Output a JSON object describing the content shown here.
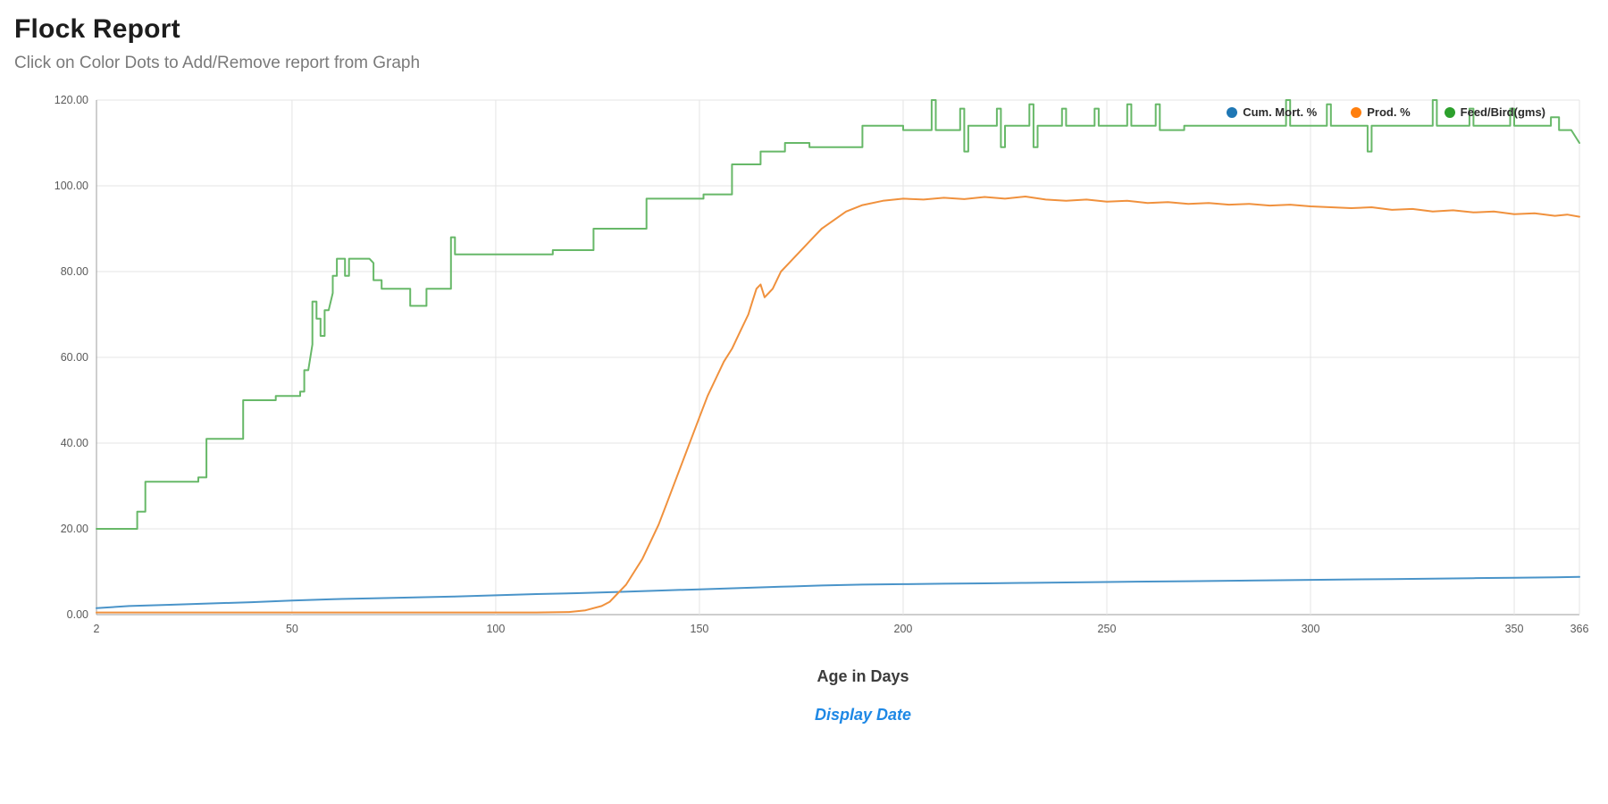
{
  "page": {
    "title": "Flock Report",
    "subtitle": "Click on Color Dots to Add/Remove report from Graph",
    "display_date_link": "Display Date"
  },
  "chart_data": {
    "type": "line",
    "title": "Flock Report",
    "xlabel": "Age in Days",
    "ylabel": "",
    "x_range": [
      2,
      366
    ],
    "y_range": [
      0,
      120
    ],
    "x_ticks": [
      2,
      50,
      100,
      150,
      200,
      250,
      300,
      350,
      366
    ],
    "y_ticks": [
      0,
      20,
      40,
      60,
      80,
      100,
      120
    ],
    "grid": true,
    "legend_position": "top-right",
    "colors": {
      "axis": "#9e9e9e",
      "gridline": "#e4e4e4",
      "tick_text": "#5a5a5a"
    },
    "series": [
      {
        "name": "Cum. Mort. %",
        "color": "#1f77b4",
        "line_color": "#4a94c9",
        "points": [
          [
            2,
            1.5
          ],
          [
            10,
            2
          ],
          [
            20,
            2.3
          ],
          [
            30,
            2.6
          ],
          [
            40,
            2.9
          ],
          [
            50,
            3.3
          ],
          [
            60,
            3.6
          ],
          [
            70,
            3.8
          ],
          [
            80,
            4.0
          ],
          [
            90,
            4.2
          ],
          [
            100,
            4.5
          ],
          [
            110,
            4.8
          ],
          [
            120,
            5.0
          ],
          [
            130,
            5.3
          ],
          [
            140,
            5.6
          ],
          [
            150,
            5.9
          ],
          [
            160,
            6.2
          ],
          [
            170,
            6.5
          ],
          [
            180,
            6.8
          ],
          [
            190,
            7.0
          ],
          [
            200,
            7.1
          ],
          [
            210,
            7.2
          ],
          [
            220,
            7.3
          ],
          [
            230,
            7.4
          ],
          [
            240,
            7.5
          ],
          [
            250,
            7.6
          ],
          [
            260,
            7.7
          ],
          [
            270,
            7.8
          ],
          [
            280,
            7.9
          ],
          [
            290,
            8.0
          ],
          [
            300,
            8.1
          ],
          [
            310,
            8.2
          ],
          [
            320,
            8.3
          ],
          [
            330,
            8.4
          ],
          [
            340,
            8.5
          ],
          [
            350,
            8.6
          ],
          [
            360,
            8.7
          ],
          [
            366,
            8.8
          ]
        ]
      },
      {
        "name": "Prod. %",
        "color": "#ff7f0e",
        "line_color": "#f0913d",
        "points": [
          [
            2,
            0.5
          ],
          [
            30,
            0.5
          ],
          [
            60,
            0.5
          ],
          [
            90,
            0.5
          ],
          [
            110,
            0.5
          ],
          [
            118,
            0.6
          ],
          [
            122,
            1
          ],
          [
            126,
            2
          ],
          [
            128,
            3
          ],
          [
            130,
            5
          ],
          [
            132,
            7
          ],
          [
            134,
            10
          ],
          [
            136,
            13
          ],
          [
            138,
            17
          ],
          [
            140,
            21
          ],
          [
            142,
            26
          ],
          [
            144,
            31
          ],
          [
            146,
            36
          ],
          [
            148,
            41
          ],
          [
            150,
            46
          ],
          [
            152,
            51
          ],
          [
            154,
            55
          ],
          [
            156,
            59
          ],
          [
            158,
            62
          ],
          [
            160,
            66
          ],
          [
            162,
            70
          ],
          [
            163,
            73
          ],
          [
            164,
            76
          ],
          [
            165,
            77
          ],
          [
            166,
            74
          ],
          [
            167,
            75
          ],
          [
            168,
            76
          ],
          [
            169,
            78
          ],
          [
            170,
            80
          ],
          [
            172,
            82
          ],
          [
            174,
            84
          ],
          [
            176,
            86
          ],
          [
            178,
            88
          ],
          [
            180,
            90
          ],
          [
            183,
            92
          ],
          [
            186,
            94
          ],
          [
            190,
            95.5
          ],
          [
            195,
            96.5
          ],
          [
            200,
            97
          ],
          [
            205,
            96.8
          ],
          [
            210,
            97.2
          ],
          [
            215,
            96.9
          ],
          [
            220,
            97.4
          ],
          [
            225,
            97
          ],
          [
            230,
            97.5
          ],
          [
            235,
            96.8
          ],
          [
            240,
            96.5
          ],
          [
            245,
            96.8
          ],
          [
            250,
            96.3
          ],
          [
            255,
            96.5
          ],
          [
            260,
            96
          ],
          [
            265,
            96.2
          ],
          [
            270,
            95.8
          ],
          [
            275,
            96
          ],
          [
            280,
            95.6
          ],
          [
            285,
            95.8
          ],
          [
            290,
            95.4
          ],
          [
            295,
            95.6
          ],
          [
            300,
            95.2
          ],
          [
            305,
            95
          ],
          [
            310,
            94.8
          ],
          [
            315,
            95
          ],
          [
            320,
            94.4
          ],
          [
            325,
            94.6
          ],
          [
            330,
            94
          ],
          [
            335,
            94.3
          ],
          [
            340,
            93.8
          ],
          [
            345,
            94
          ],
          [
            350,
            93.4
          ],
          [
            355,
            93.6
          ],
          [
            360,
            93
          ],
          [
            363,
            93.3
          ],
          [
            366,
            92.8
          ]
        ]
      },
      {
        "name": "Feed/Bird(gms)",
        "color": "#2ca02c",
        "line_color": "#67b868",
        "points": [
          [
            2,
            20
          ],
          [
            12,
            20
          ],
          [
            12,
            24
          ],
          [
            14,
            24
          ],
          [
            14,
            31
          ],
          [
            27,
            31
          ],
          [
            27,
            32
          ],
          [
            29,
            32
          ],
          [
            29,
            41
          ],
          [
            38,
            41
          ],
          [
            38,
            50
          ],
          [
            46,
            50
          ],
          [
            46,
            51
          ],
          [
            52,
            51
          ],
          [
            52,
            52
          ],
          [
            53,
            52
          ],
          [
            53,
            57
          ],
          [
            54,
            57
          ],
          [
            55,
            63
          ],
          [
            55,
            73
          ],
          [
            56,
            73
          ],
          [
            56,
            69
          ],
          [
            57,
            69
          ],
          [
            57,
            65
          ],
          [
            58,
            65
          ],
          [
            58,
            71
          ],
          [
            59,
            71
          ],
          [
            60,
            75
          ],
          [
            60,
            79
          ],
          [
            61,
            79
          ],
          [
            61,
            83
          ],
          [
            63,
            83
          ],
          [
            63,
            79
          ],
          [
            64,
            79
          ],
          [
            64,
            83
          ],
          [
            69,
            83
          ],
          [
            70,
            82
          ],
          [
            70,
            78
          ],
          [
            72,
            78
          ],
          [
            72,
            76
          ],
          [
            79,
            76
          ],
          [
            79,
            72
          ],
          [
            83,
            72
          ],
          [
            83,
            76
          ],
          [
            89,
            76
          ],
          [
            89,
            88
          ],
          [
            90,
            88
          ],
          [
            90,
            84
          ],
          [
            114,
            84
          ],
          [
            114,
            85
          ],
          [
            124,
            85
          ],
          [
            124,
            90
          ],
          [
            137,
            90
          ],
          [
            137,
            97
          ],
          [
            151,
            97
          ],
          [
            151,
            98
          ],
          [
            158,
            98
          ],
          [
            158,
            105
          ],
          [
            165,
            105
          ],
          [
            165,
            108
          ],
          [
            171,
            108
          ],
          [
            171,
            110
          ],
          [
            177,
            110
          ],
          [
            177,
            109
          ],
          [
            190,
            109
          ],
          [
            190,
            114
          ],
          [
            200,
            114
          ],
          [
            200,
            113
          ],
          [
            207,
            113
          ],
          [
            207,
            120
          ],
          [
            208,
            120
          ],
          [
            208,
            113
          ],
          [
            214,
            113
          ],
          [
            214,
            118
          ],
          [
            215,
            118
          ],
          [
            215,
            108
          ],
          [
            216,
            108
          ],
          [
            216,
            114
          ],
          [
            223,
            114
          ],
          [
            223,
            118
          ],
          [
            224,
            118
          ],
          [
            224,
            109
          ],
          [
            225,
            109
          ],
          [
            225,
            114
          ],
          [
            231,
            114
          ],
          [
            231,
            119
          ],
          [
            232,
            119
          ],
          [
            232,
            109
          ],
          [
            233,
            109
          ],
          [
            233,
            114
          ],
          [
            239,
            114
          ],
          [
            239,
            118
          ],
          [
            240,
            118
          ],
          [
            240,
            114
          ],
          [
            247,
            114
          ],
          [
            247,
            118
          ],
          [
            248,
            118
          ],
          [
            248,
            114
          ],
          [
            255,
            114
          ],
          [
            255,
            119
          ],
          [
            256,
            119
          ],
          [
            256,
            114
          ],
          [
            262,
            114
          ],
          [
            262,
            119
          ],
          [
            263,
            119
          ],
          [
            263,
            113
          ],
          [
            269,
            113
          ],
          [
            269,
            114
          ],
          [
            287,
            114
          ],
          [
            294,
            114
          ],
          [
            294,
            120
          ],
          [
            295,
            120
          ],
          [
            295,
            114
          ],
          [
            304,
            114
          ],
          [
            304,
            119
          ],
          [
            305,
            119
          ],
          [
            305,
            114
          ],
          [
            314,
            114
          ],
          [
            314,
            108
          ],
          [
            315,
            108
          ],
          [
            315,
            114
          ],
          [
            330,
            114
          ],
          [
            330,
            120
          ],
          [
            331,
            120
          ],
          [
            331,
            114
          ],
          [
            339,
            114
          ],
          [
            339,
            118
          ],
          [
            340,
            118
          ],
          [
            340,
            114
          ],
          [
            349,
            114
          ],
          [
            349,
            118
          ],
          [
            350,
            118
          ],
          [
            350,
            114
          ],
          [
            359,
            114
          ],
          [
            359,
            116
          ],
          [
            361,
            116
          ],
          [
            361,
            113
          ],
          [
            364,
            113
          ],
          [
            366,
            110
          ]
        ]
      }
    ]
  }
}
